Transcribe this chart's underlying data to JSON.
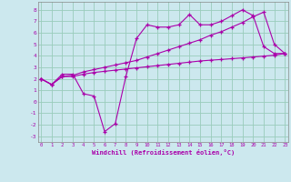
{
  "xlabel": "Windchill (Refroidissement éolien,°C)",
  "bg_color": "#cce8ee",
  "grid_color": "#99ccbb",
  "line_color": "#aa00aa",
  "x_ticks": [
    0,
    1,
    2,
    3,
    4,
    5,
    6,
    7,
    8,
    9,
    10,
    11,
    12,
    13,
    14,
    15,
    16,
    17,
    18,
    19,
    20,
    21,
    22,
    23
  ],
  "y_ticks": [
    -3,
    -2,
    -1,
    0,
    1,
    2,
    3,
    4,
    5,
    6,
    7,
    8
  ],
  "xlim": [
    -0.3,
    23.3
  ],
  "ylim": [
    -3.5,
    8.7
  ],
  "series1_x": [
    0,
    1,
    2,
    3,
    4,
    5,
    6,
    7,
    8,
    9,
    10,
    11,
    12,
    13,
    14,
    15,
    16,
    17,
    18,
    19,
    20,
    21,
    22,
    23
  ],
  "series1_y": [
    2.0,
    1.5,
    2.4,
    2.4,
    0.7,
    0.5,
    -2.6,
    -1.9,
    2.2,
    5.5,
    6.7,
    6.5,
    6.5,
    6.7,
    7.6,
    6.7,
    6.7,
    7.0,
    7.5,
    8.0,
    7.5,
    4.8,
    4.2,
    4.2
  ],
  "series2_x": [
    0,
    1,
    2,
    3,
    4,
    5,
    6,
    7,
    8,
    9,
    10,
    11,
    12,
    13,
    14,
    15,
    16,
    17,
    18,
    19,
    20,
    21,
    22,
    23
  ],
  "series2_y": [
    2.0,
    1.5,
    2.2,
    2.2,
    2.4,
    2.55,
    2.65,
    2.75,
    2.85,
    2.95,
    3.05,
    3.15,
    3.25,
    3.35,
    3.45,
    3.55,
    3.62,
    3.68,
    3.75,
    3.82,
    3.9,
    3.97,
    4.05,
    4.2
  ],
  "series3_x": [
    0,
    1,
    2,
    3,
    4,
    5,
    6,
    7,
    8,
    9,
    10,
    11,
    12,
    13,
    14,
    15,
    16,
    17,
    18,
    19,
    20,
    21,
    22,
    23
  ],
  "series3_y": [
    2.0,
    1.5,
    2.2,
    2.3,
    2.6,
    2.8,
    3.0,
    3.2,
    3.4,
    3.6,
    3.9,
    4.2,
    4.5,
    4.8,
    5.1,
    5.4,
    5.8,
    6.1,
    6.5,
    6.9,
    7.4,
    7.8,
    5.0,
    4.2
  ]
}
